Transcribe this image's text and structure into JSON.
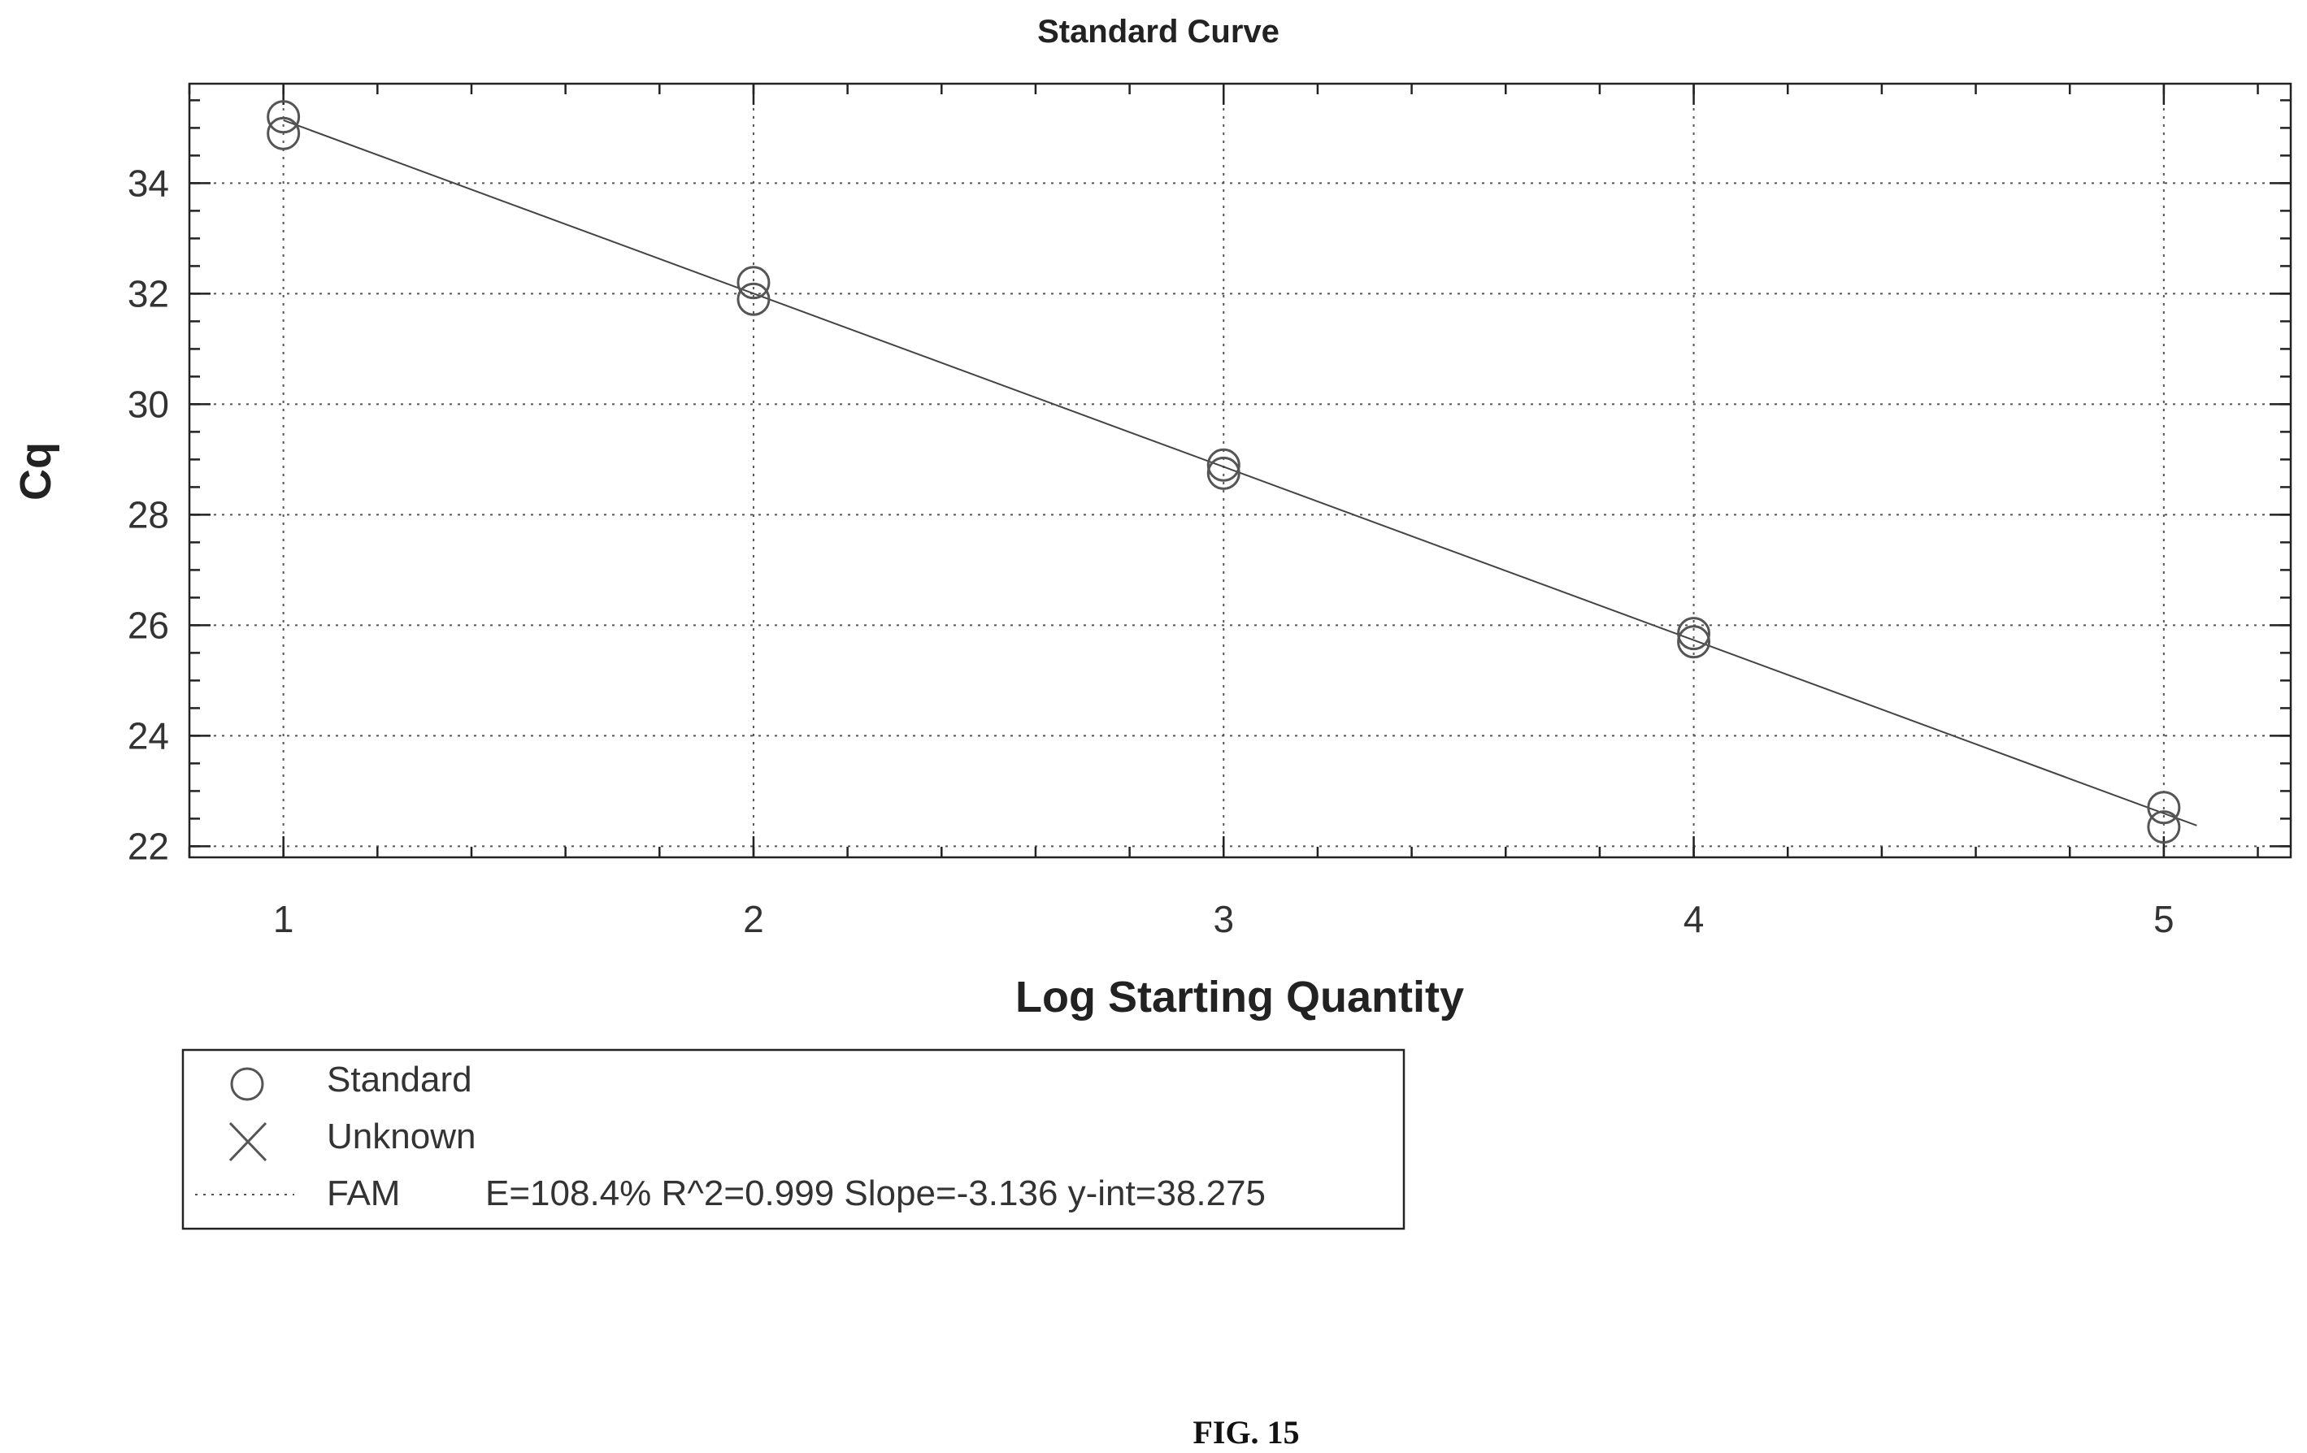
{
  "chart_data": {
    "type": "scatter",
    "title": "Standard Curve",
    "xlabel": "Log Starting Quantity",
    "ylabel": "Cq",
    "xlim": [
      0.8,
      5.27
    ],
    "ylim": [
      21.8,
      35.8
    ],
    "xticks": [
      1,
      2,
      3,
      4,
      5
    ],
    "yticks": [
      22,
      24,
      26,
      28,
      30,
      32,
      34
    ],
    "x_minor_step": 0.2,
    "y_minor_step": 0.5,
    "grid": true,
    "series": [
      {
        "name": "Standard",
        "marker": "circle",
        "points": [
          {
            "x": 1,
            "y": 35.2
          },
          {
            "x": 1,
            "y": 34.9
          },
          {
            "x": 2,
            "y": 32.2
          },
          {
            "x": 2,
            "y": 31.9
          },
          {
            "x": 3,
            "y": 28.9
          },
          {
            "x": 3,
            "y": 28.75
          },
          {
            "x": 4,
            "y": 25.85
          },
          {
            "x": 4,
            "y": 25.7
          },
          {
            "x": 5,
            "y": 22.7
          },
          {
            "x": 5,
            "y": 22.35
          }
        ]
      },
      {
        "name": "Unknown",
        "marker": "x",
        "points": []
      }
    ],
    "fit": {
      "name": "FAM",
      "slope": -3.136,
      "intercept": 38.275,
      "x_range": [
        1,
        5.07
      ],
      "label": "E=108.4% R^2=0.999 Slope=-3.136 y-int=38.275"
    },
    "legend": {
      "position": "bottom-left",
      "entries": [
        "Standard",
        "Unknown",
        "FAM"
      ]
    }
  },
  "caption": "FIG. 15"
}
